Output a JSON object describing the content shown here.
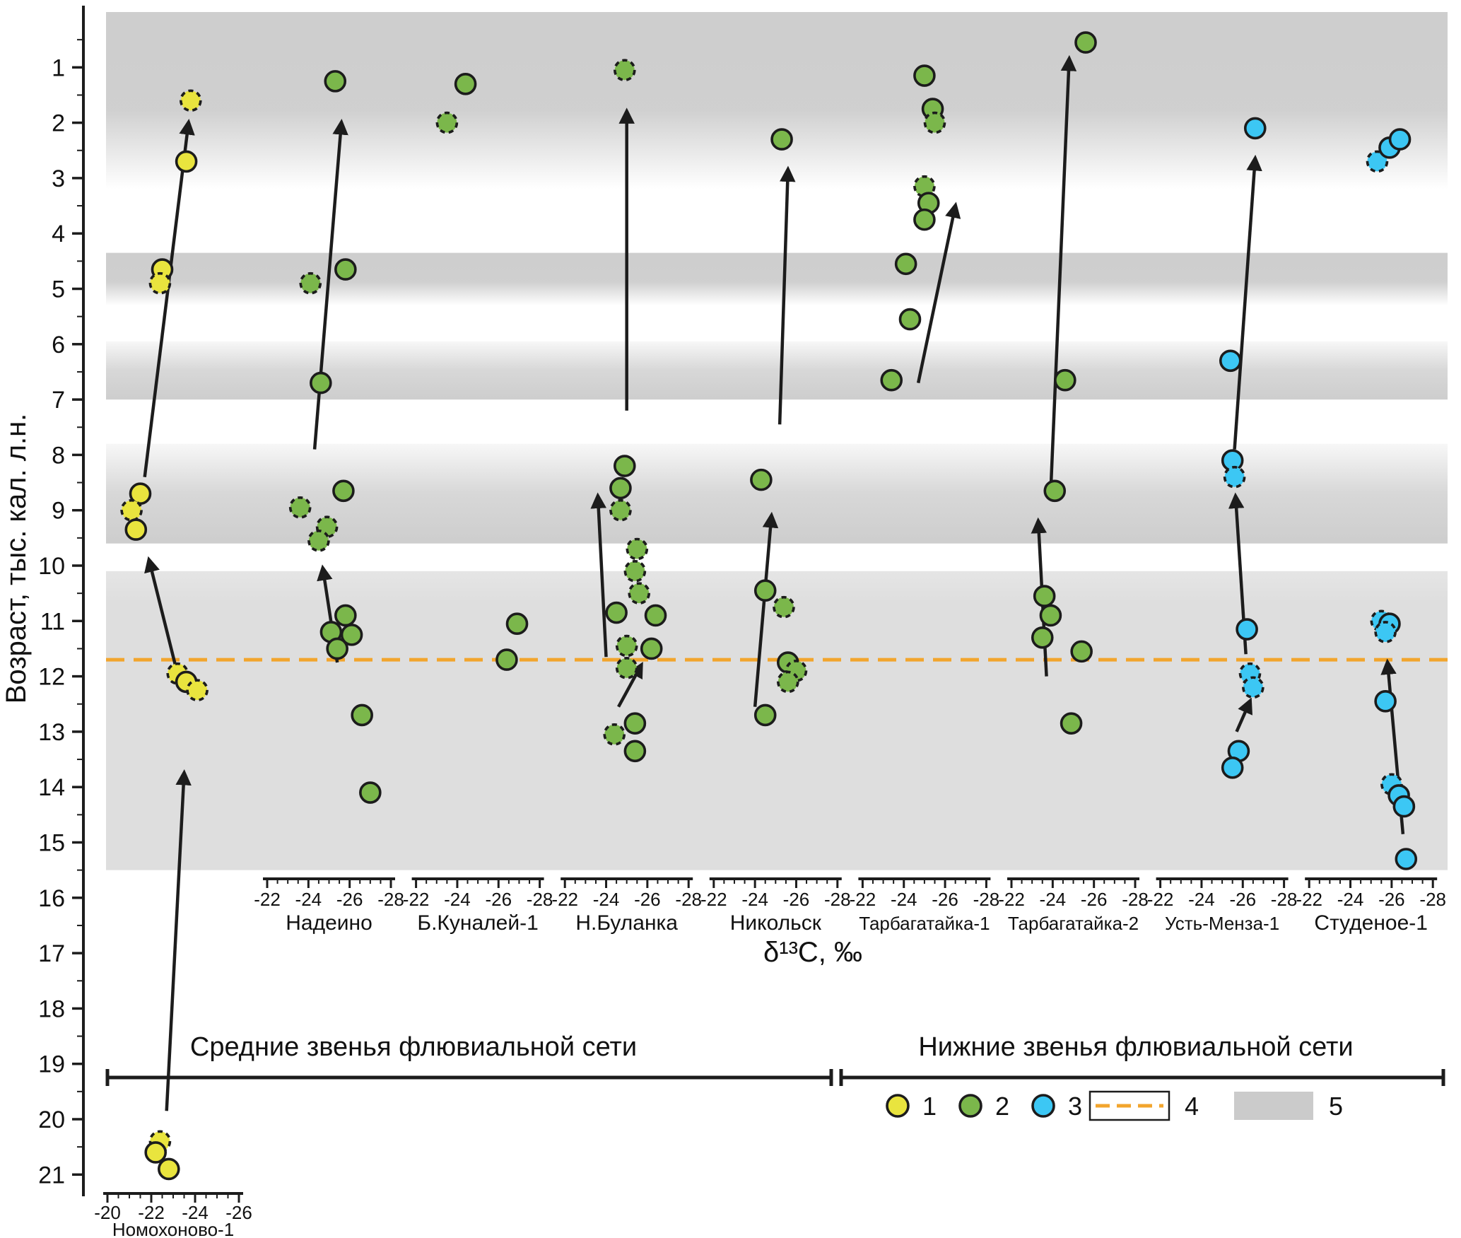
{
  "chart_data": {
    "type": "scatter",
    "ylabel": "Возраст, тыс. кал. л.н.",
    "xlabel": "δ¹³C, ‰",
    "y_ticks": [
      1,
      2,
      3,
      4,
      5,
      6,
      7,
      8,
      9,
      10,
      11,
      12,
      13,
      14,
      15,
      16,
      17,
      18,
      19,
      20,
      21
    ],
    "y_range": [
      0,
      21.4
    ],
    "reference_line": {
      "age": 11.7,
      "color": "#f2a52d",
      "style": "dashed"
    },
    "band_color": "#9c9c9c",
    "bands": [
      {
        "from": 0,
        "to": 3.2,
        "fade": "down"
      },
      {
        "from": 4.35,
        "to": 5.3,
        "fade": "down"
      },
      {
        "from": 5.95,
        "to": 7.0,
        "fade": "up"
      },
      {
        "from": 7.8,
        "to": 9.6,
        "fade": "up"
      },
      {
        "from": 10.1,
        "to": 15.5,
        "fade": "uniform"
      }
    ],
    "series_colors": {
      "1": "#e9e43e",
      "2": "#7bb74b",
      "3": "#3cc7f4"
    },
    "point_stroke": "#1c1c1c",
    "group_labels": [
      {
        "text": "Средние звенья флювиальной сети"
      },
      {
        "text": "Нижние звенья флювиальной сети"
      }
    ],
    "legend": [
      {
        "label": "1",
        "swatch": "point",
        "series": "1"
      },
      {
        "label": "2",
        "swatch": "point",
        "series": "2"
      },
      {
        "label": "3",
        "swatch": "point",
        "series": "3"
      },
      {
        "label": "4",
        "swatch": "dashed-line"
      },
      {
        "label": "5",
        "swatch": "band"
      }
    ],
    "sites": [
      {
        "name": "Номохоново-1",
        "series": 1,
        "axis_row": "bottom",
        "domain": [
          -20,
          -26
        ],
        "ticks": [
          -20,
          -22,
          -24,
          -26
        ],
        "points": [
          {
            "d": -23.8,
            "age": 1.6,
            "dash": true
          },
          {
            "d": -23.6,
            "age": 2.7
          },
          {
            "d": -22.5,
            "age": 4.65
          },
          {
            "d": -22.4,
            "age": 4.9,
            "dash": true
          },
          {
            "d": -21.5,
            "age": 8.7
          },
          {
            "d": -21.1,
            "age": 9.0,
            "dash": true
          },
          {
            "d": -21.3,
            "age": 9.35
          },
          {
            "d": -23.2,
            "age": 11.95,
            "dash": true
          },
          {
            "d": -23.6,
            "age": 12.1
          },
          {
            "d": -24.1,
            "age": 12.25,
            "dash": true
          },
          {
            "d": -22.4,
            "age": 20.4,
            "dash": true
          },
          {
            "d": -22.2,
            "age": 20.6
          },
          {
            "d": -22.8,
            "age": 20.9
          }
        ],
        "arrows": [
          {
            "from": [
              -22.7,
              19.85
            ],
            "to": [
              -23.5,
              13.75
            ]
          },
          {
            "from": [
              -23.1,
              11.8
            ],
            "to": [
              -21.9,
              9.9
            ]
          },
          {
            "from": [
              -21.7,
              8.4
            ],
            "to": [
              -23.7,
              2.0
            ]
          }
        ]
      },
      {
        "name": "Надеино",
        "series": 2,
        "domain": [
          -22,
          -28
        ],
        "ticks": [
          -22,
          -24,
          -26,
          -28
        ],
        "points": [
          {
            "d": -25.3,
            "age": 1.25
          },
          {
            "d": -25.8,
            "age": 4.65
          },
          {
            "d": -24.1,
            "age": 4.9,
            "dash": true
          },
          {
            "d": -24.6,
            "age": 6.7
          },
          {
            "d": -25.7,
            "age": 8.65
          },
          {
            "d": -23.6,
            "age": 8.95,
            "dash": true
          },
          {
            "d": -24.9,
            "age": 9.3,
            "dash": true
          },
          {
            "d": -24.5,
            "age": 9.55,
            "dash": true
          },
          {
            "d": -25.8,
            "age": 10.9
          },
          {
            "d": -25.1,
            "age": 11.2
          },
          {
            "d": -26.1,
            "age": 11.25
          },
          {
            "d": -25.4,
            "age": 11.5
          },
          {
            "d": -26.6,
            "age": 12.7
          },
          {
            "d": -27.0,
            "age": 14.1
          }
        ],
        "arrows": [
          {
            "from": [
              -25.4,
              11.75
            ],
            "to": [
              -24.7,
              10.05
            ]
          },
          {
            "from": [
              -24.3,
              7.9
            ],
            "to": [
              -25.6,
              2.0
            ]
          }
        ]
      },
      {
        "name": "Б.Куналей-1",
        "series": 2,
        "domain": [
          -22,
          -28
        ],
        "ticks": [
          -22,
          -24,
          -26,
          -28
        ],
        "points": [
          {
            "d": -24.4,
            "age": 1.3
          },
          {
            "d": -23.5,
            "age": 2.0,
            "dash": true
          },
          {
            "d": -26.9,
            "age": 11.05
          },
          {
            "d": -26.4,
            "age": 11.7
          }
        ],
        "arrows": []
      },
      {
        "name": "Н.Буланка",
        "series": 2,
        "domain": [
          -22,
          -28
        ],
        "ticks": [
          -22,
          -24,
          -26,
          -28
        ],
        "points": [
          {
            "d": -24.9,
            "age": 1.05,
            "dash": true
          },
          {
            "d": -24.9,
            "age": 8.2
          },
          {
            "d": -24.7,
            "age": 8.6
          },
          {
            "d": -24.7,
            "age": 9.0,
            "dash": true
          },
          {
            "d": -25.5,
            "age": 9.7,
            "dash": true
          },
          {
            "d": -25.4,
            "age": 10.1,
            "dash": true
          },
          {
            "d": -25.6,
            "age": 10.5,
            "dash": true
          },
          {
            "d": -24.5,
            "age": 10.85
          },
          {
            "d": -26.4,
            "age": 10.9
          },
          {
            "d": -25.0,
            "age": 11.45,
            "dash": true
          },
          {
            "d": -26.2,
            "age": 11.5
          },
          {
            "d": -25.0,
            "age": 11.85,
            "dash": true
          },
          {
            "d": -25.4,
            "age": 12.85
          },
          {
            "d": -24.4,
            "age": 13.05,
            "dash": true
          },
          {
            "d": -25.4,
            "age": 13.35
          }
        ],
        "arrows": [
          {
            "from": [
              -25.0,
              7.2
            ],
            "to": [
              -25.0,
              1.8
            ]
          },
          {
            "from": [
              -24.0,
              11.65
            ],
            "to": [
              -23.6,
              8.75
            ]
          },
          {
            "from": [
              -24.6,
              12.55
            ],
            "to": [
              -25.7,
              11.8
            ]
          }
        ]
      },
      {
        "name": "Никольск",
        "series": 2,
        "domain": [
          -22,
          -28
        ],
        "ticks": [
          -22,
          -24,
          -26,
          -28
        ],
        "points": [
          {
            "d": -25.3,
            "age": 2.3
          },
          {
            "d": -24.3,
            "age": 8.45
          },
          {
            "d": -24.5,
            "age": 10.45
          },
          {
            "d": -25.4,
            "age": 10.75,
            "dash": true
          },
          {
            "d": -25.6,
            "age": 11.75
          },
          {
            "d": -26.0,
            "age": 11.9,
            "dash": true
          },
          {
            "d": -25.6,
            "age": 12.1,
            "dash": true
          },
          {
            "d": -24.5,
            "age": 12.7
          }
        ],
        "arrows": [
          {
            "from": [
              -25.2,
              7.45
            ],
            "to": [
              -25.6,
              2.85
            ]
          },
          {
            "from": [
              -24.0,
              12.55
            ],
            "to": [
              -24.8,
              9.1
            ]
          }
        ]
      },
      {
        "name": "Тарбагатайка-1",
        "series": 2,
        "domain": [
          -22,
          -28
        ],
        "ticks": [
          -22,
          -24,
          -26,
          -28
        ],
        "points": [
          {
            "d": -25.0,
            "age": 1.15
          },
          {
            "d": -25.4,
            "age": 1.75
          },
          {
            "d": -25.5,
            "age": 2.0,
            "dash": true
          },
          {
            "d": -25.0,
            "age": 3.15,
            "dash": true
          },
          {
            "d": -25.2,
            "age": 3.45
          },
          {
            "d": -25.0,
            "age": 3.75
          },
          {
            "d": -24.1,
            "age": 4.55
          },
          {
            "d": -24.3,
            "age": 5.55
          },
          {
            "d": -23.4,
            "age": 6.65
          }
        ],
        "arrows": [
          {
            "from": [
              -24.7,
              6.7
            ],
            "to": [
              -26.5,
              3.5
            ]
          }
        ]
      },
      {
        "name": "Тарбагатайка-2",
        "series": 2,
        "domain": [
          -22,
          -28
        ],
        "ticks": [
          -22,
          -24,
          -26,
          -28
        ],
        "points": [
          {
            "d": -25.6,
            "age": 0.55
          },
          {
            "d": -24.6,
            "age": 6.65
          },
          {
            "d": -24.1,
            "age": 8.65
          },
          {
            "d": -23.6,
            "age": 10.55
          },
          {
            "d": -23.9,
            "age": 10.9
          },
          {
            "d": -23.5,
            "age": 11.3
          },
          {
            "d": -25.4,
            "age": 11.55
          },
          {
            "d": -24.9,
            "age": 12.85
          }
        ],
        "arrows": [
          {
            "from": [
              -23.7,
              12.0
            ],
            "to": [
              -23.3,
              9.2
            ]
          },
          {
            "from": [
              -23.9,
              8.7
            ],
            "to": [
              -24.8,
              0.85
            ]
          }
        ]
      },
      {
        "name": "Усть-Менза-1",
        "series": 3,
        "domain": [
          -22,
          -28
        ],
        "ticks": [
          -22,
          -24,
          -26,
          -28
        ],
        "points": [
          {
            "d": -26.6,
            "age": 2.1
          },
          {
            "d": -25.4,
            "age": 6.3
          },
          {
            "d": -25.5,
            "age": 8.1
          },
          {
            "d": -25.6,
            "age": 8.4,
            "dash": true
          },
          {
            "d": -26.2,
            "age": 11.15
          },
          {
            "d": -26.35,
            "age": 11.95,
            "dash": true
          },
          {
            "d": -26.5,
            "age": 12.2,
            "dash": true
          },
          {
            "d": -25.8,
            "age": 13.35
          },
          {
            "d": -25.5,
            "age": 13.65
          }
        ],
        "arrows": [
          {
            "from": [
              -25.7,
              13.0
            ],
            "to": [
              -26.35,
              12.45
            ]
          },
          {
            "from": [
              -26.15,
              11.6
            ],
            "to": [
              -25.65,
              8.75
            ]
          },
          {
            "from": [
              -25.6,
              7.9
            ],
            "to": [
              -26.6,
              2.65
            ]
          }
        ]
      },
      {
        "name": "Студеное-1",
        "series": 3,
        "domain": [
          -22,
          -28
        ],
        "ticks": [
          -22,
          -24,
          -26,
          -28
        ],
        "points": [
          {
            "d": -25.3,
            "age": 2.7,
            "dash": true
          },
          {
            "d": -25.9,
            "age": 2.45
          },
          {
            "d": -26.4,
            "age": 2.3
          },
          {
            "d": -25.5,
            "age": 11.0,
            "dash": true
          },
          {
            "d": -25.9,
            "age": 11.05
          },
          {
            "d": -25.7,
            "age": 11.2,
            "dash": true
          },
          {
            "d": -25.7,
            "age": 12.45
          },
          {
            "d": -26.0,
            "age": 13.95,
            "dash": true
          },
          {
            "d": -26.35,
            "age": 14.15
          },
          {
            "d": -26.6,
            "age": 14.35
          },
          {
            "d": -26.7,
            "age": 15.3
          }
        ],
        "arrows": [
          {
            "from": [
              -26.55,
              14.85
            ],
            "to": [
              -25.8,
              11.75
            ]
          }
        ]
      }
    ]
  }
}
